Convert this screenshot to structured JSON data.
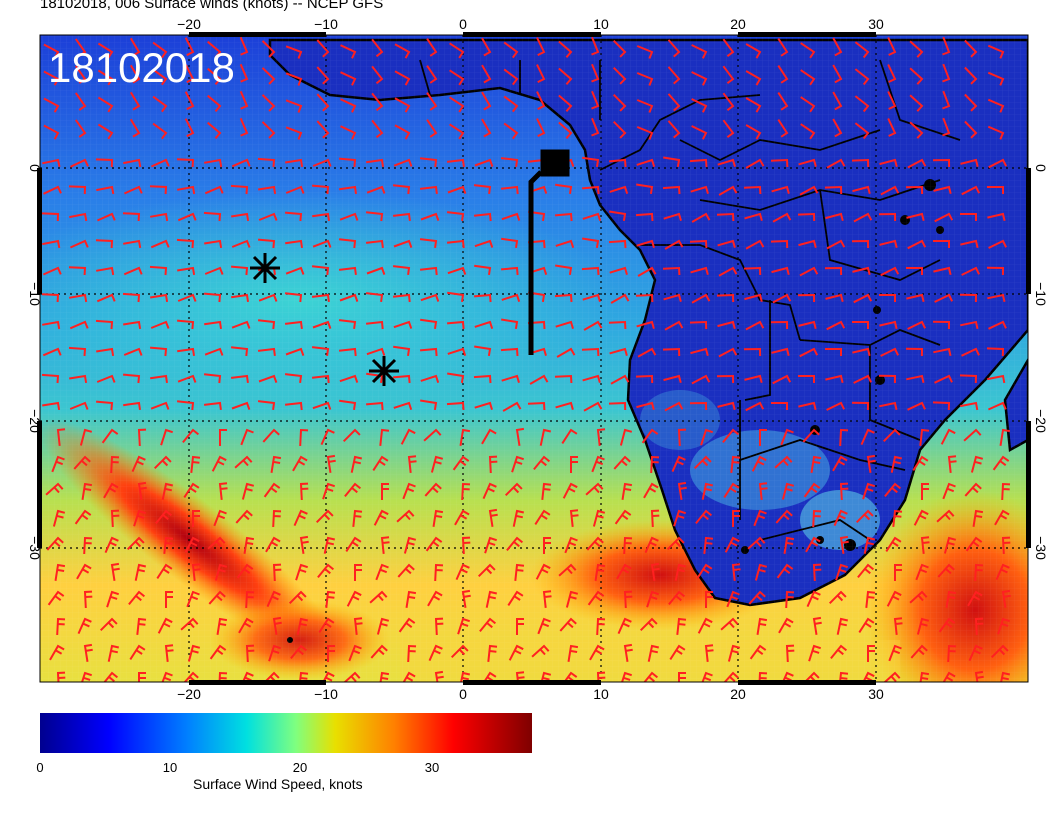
{
  "title": "18102018, 006 Surface winds (knots) -- NCEP GFS",
  "date_stamp": "18102018",
  "map": {
    "lon_ticks": [
      "−20",
      "−10",
      "0",
      "10",
      "20",
      "30"
    ],
    "lat_ticks": [
      "0",
      "−10",
      "−20",
      "−30"
    ],
    "wind_barb_color": "#ff2020",
    "marker_color": "#000000"
  },
  "colorbar": {
    "title": "Surface Wind Speed, knots",
    "ticks": [
      "0",
      "10",
      "20",
      "30"
    ],
    "range": [
      0,
      38
    ]
  }
}
